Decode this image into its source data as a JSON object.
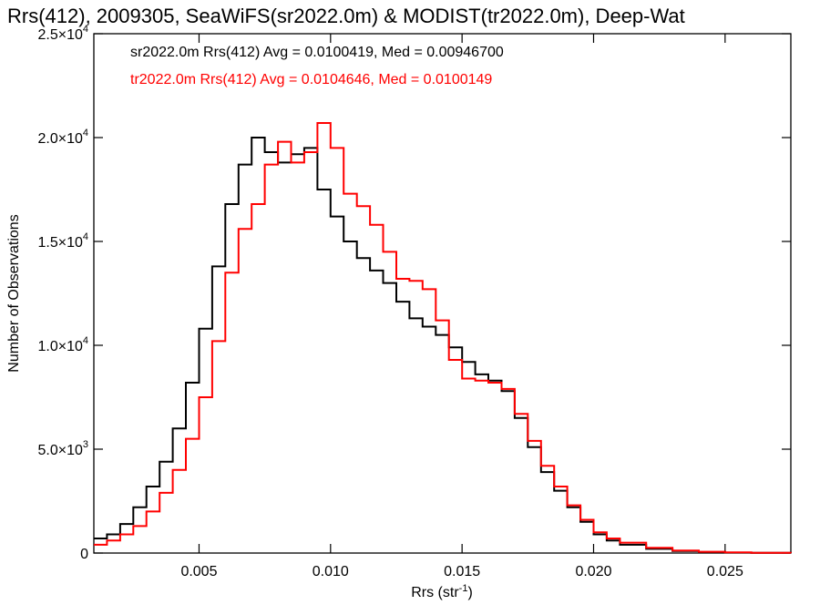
{
  "chart_data": {
    "type": "line",
    "title": "Rrs(412), 2009305, SeaWiFS(sr2022.0m) & MODIST(tr2022.0m), Deep-Wat",
    "xlabel_main": "Rrs (str",
    "xlabel_sup": "-1",
    "xlabel_end": ")",
    "ylabel": "Number of Observations",
    "xlim": [
      0.001,
      0.0275
    ],
    "ylim": [
      0,
      25000
    ],
    "x_ticks": [
      {
        "value": 0.005,
        "label": "0.005"
      },
      {
        "value": 0.01,
        "label": "0.010"
      },
      {
        "value": 0.015,
        "label": "0.015"
      },
      {
        "value": 0.02,
        "label": "0.020"
      },
      {
        "value": 0.025,
        "label": "0.025"
      }
    ],
    "y_ticks": [
      {
        "value": 0,
        "mant": "0",
        "exp": ""
      },
      {
        "value": 5000,
        "mant": "5.0×10",
        "exp": "3"
      },
      {
        "value": 10000,
        "mant": "1.0×10",
        "exp": "4"
      },
      {
        "value": 15000,
        "mant": "1.5×10",
        "exp": "4"
      },
      {
        "value": 20000,
        "mant": "2.0×10",
        "exp": "4"
      },
      {
        "value": 25000,
        "mant": "2.5×10",
        "exp": "4"
      }
    ],
    "grid": false,
    "legend_placement": "top-left",
    "series": [
      {
        "name": "sr2022.0m",
        "label": "sr2022.0m Rrs(412) Avg = 0.0100419, Med = 0.00946700",
        "color": "#000000",
        "x": [
          0.001,
          0.0015,
          0.002,
          0.0025,
          0.003,
          0.0035,
          0.004,
          0.0045,
          0.005,
          0.0055,
          0.006,
          0.0065,
          0.007,
          0.0075,
          0.008,
          0.0085,
          0.009,
          0.0095,
          0.01,
          0.0105,
          0.011,
          0.0115,
          0.012,
          0.0125,
          0.013,
          0.0135,
          0.014,
          0.0145,
          0.015,
          0.0155,
          0.016,
          0.0165,
          0.017,
          0.0175,
          0.018,
          0.0185,
          0.019,
          0.0195,
          0.02,
          0.0205,
          0.021,
          0.022,
          0.023,
          0.024,
          0.025,
          0.026,
          0.0275
        ],
        "y": [
          700,
          900,
          1400,
          2200,
          3200,
          4400,
          6000,
          8200,
          10800,
          13800,
          16800,
          18700,
          20000,
          19300,
          18800,
          19200,
          19500,
          17500,
          16200,
          15000,
          14200,
          13600,
          13000,
          12100,
          11300,
          10900,
          10500,
          9900,
          9200,
          8600,
          8300,
          7800,
          6500,
          5100,
          3900,
          3000,
          2200,
          1500,
          900,
          600,
          400,
          200,
          100,
          50,
          20,
          10,
          5
        ]
      },
      {
        "name": "tr2022.0m",
        "label": "tr2022.0m Rrs(412) Avg = 0.0104646, Med = 0.0100149",
        "color": "#ff0000",
        "x": [
          0.001,
          0.0015,
          0.002,
          0.0025,
          0.003,
          0.0035,
          0.004,
          0.0045,
          0.005,
          0.0055,
          0.006,
          0.0065,
          0.007,
          0.0075,
          0.008,
          0.0085,
          0.009,
          0.0095,
          0.01,
          0.0105,
          0.011,
          0.0115,
          0.012,
          0.0125,
          0.013,
          0.0135,
          0.014,
          0.0145,
          0.015,
          0.0155,
          0.016,
          0.0165,
          0.017,
          0.0175,
          0.018,
          0.0185,
          0.019,
          0.0195,
          0.02,
          0.0205,
          0.021,
          0.022,
          0.023,
          0.024,
          0.025,
          0.026,
          0.0275
        ],
        "y": [
          400,
          600,
          900,
          1300,
          2000,
          2900,
          4000,
          5500,
          7500,
          10200,
          13500,
          15600,
          16800,
          18700,
          19800,
          18800,
          19300,
          20700,
          19500,
          17300,
          16700,
          15800,
          14500,
          13200,
          13100,
          12700,
          11200,
          9300,
          8400,
          8300,
          8200,
          7900,
          6700,
          5400,
          4200,
          3200,
          2300,
          1600,
          1000,
          700,
          500,
          250,
          120,
          60,
          30,
          15,
          5
        ]
      }
    ]
  }
}
